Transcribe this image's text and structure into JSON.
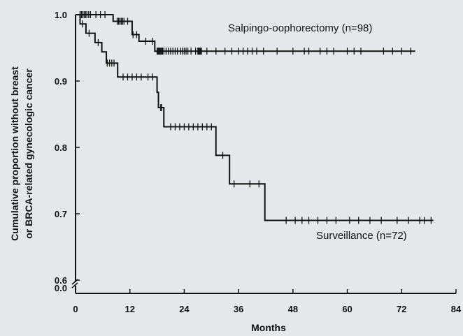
{
  "chart_data": {
    "type": "line",
    "subtype": "kaplan-meier",
    "xlabel": "Months",
    "ylabel_lines": [
      "Cumulative proportion without breast",
      "or BRCA-related gynecologic cancer"
    ],
    "x_ticks": [
      0,
      12,
      24,
      36,
      48,
      60,
      72,
      84
    ],
    "y_ticks": [
      {
        "value": 1.0,
        "label": "1.0"
      },
      {
        "value": 0.9,
        "label": "0.9"
      },
      {
        "value": 0.8,
        "label": "0.8"
      },
      {
        "value": 0.7,
        "label": "0.7"
      },
      {
        "value": 0.6,
        "label": "0.6"
      }
    ],
    "y_origin_label": "0.0",
    "axis_break": true,
    "xlim": [
      0,
      84
    ],
    "ylim": [
      0.6,
      1.0
    ],
    "series": [
      {
        "name": "Salpingo-oophorectomy (n=98)",
        "steps": [
          [
            0,
            1.0
          ],
          [
            8.3,
            0.99
          ],
          [
            12.5,
            0.97
          ],
          [
            14.0,
            0.96
          ],
          [
            17.5,
            0.945
          ],
          [
            75,
            0.945
          ]
        ],
        "censored": [
          1,
          1.3,
          1.6,
          1.9,
          2.2,
          2.5,
          2.9,
          3.3,
          4.5,
          5.5,
          6.5,
          9.2,
          9.5,
          9.8,
          10.1,
          10.4,
          10.7,
          11.5,
          12.7,
          13.5,
          15.5,
          17.0,
          18.0,
          18.2,
          18.4,
          18.6,
          18.8,
          19.0,
          19.2,
          19.5,
          20.0,
          20.5,
          21.0,
          21.5,
          22.0,
          22.5,
          23.2,
          23.6,
          24.0,
          24.4,
          24.8,
          25.5,
          26.5,
          27.0,
          27.2,
          27.4,
          27.6,
          27.8,
          29.0,
          31.0,
          33.0,
          34.5,
          36.0,
          37.0,
          38.0,
          39.0,
          40.0,
          41.5,
          44.5,
          48.0,
          50.5,
          51.5,
          54.0,
          55.5,
          57.0,
          60.0,
          61.5,
          63.0,
          68.0,
          70.0,
          72.0,
          74.0
        ]
      },
      {
        "name": "Surveillance (n=72)",
        "steps": [
          [
            0,
            1.0
          ],
          [
            1.0,
            0.986
          ],
          [
            2.3,
            0.972
          ],
          [
            4.3,
            0.958
          ],
          [
            5.8,
            0.944
          ],
          [
            6.8,
            0.927
          ],
          [
            9.3,
            0.906
          ],
          [
            18.0,
            0.883
          ],
          [
            18.3,
            0.86
          ],
          [
            19.5,
            0.831
          ],
          [
            31.0,
            0.788
          ],
          [
            34.0,
            0.745
          ],
          [
            41.8,
            0.69
          ],
          [
            79,
            0.69
          ]
        ],
        "censored": [
          1.5,
          3.0,
          5.0,
          7.0,
          7.5,
          8.0,
          8.5,
          10.5,
          11.5,
          12.5,
          13.5,
          14.5,
          16.0,
          17.0,
          18.8,
          19.0,
          21.0,
          22.0,
          23.0,
          24.0,
          25.0,
          26.0,
          27.0,
          28.0,
          29.0,
          30.0,
          32.5,
          35.0,
          38.5,
          40.5,
          46.5,
          48.5,
          50.0,
          51.5,
          53.5,
          55.5,
          57.5,
          60.5,
          62.5,
          65.0,
          67.5,
          71.0,
          73.5,
          76.0,
          77.0,
          78.5
        ]
      }
    ]
  },
  "labels": {
    "series_a": "Salpingo-oophorectomy (n=98)",
    "series_b": "Surveillance (n=72)"
  }
}
